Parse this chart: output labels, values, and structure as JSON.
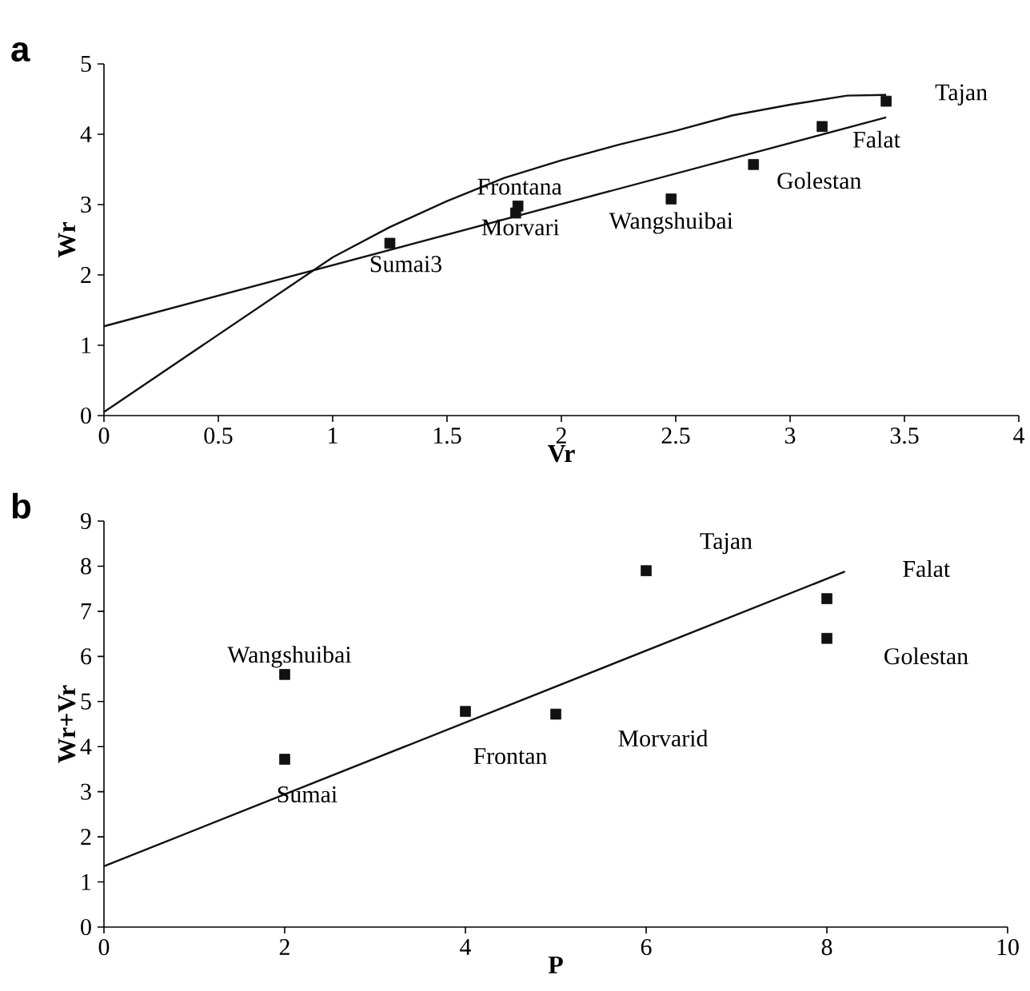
{
  "chart_data": [
    {
      "type": "scatter",
      "title": "a",
      "xlabel": "Vr",
      "ylabel": "Wr",
      "xlim": [
        0,
        4
      ],
      "ylim": [
        0,
        5
      ],
      "xticks": [
        0,
        0.5,
        1,
        1.5,
        2,
        2.5,
        3,
        3.5,
        4
      ],
      "yticks": [
        0,
        1,
        2,
        3,
        4,
        5
      ],
      "grid": false,
      "series": [
        {
          "color": "#111111",
          "marker": "square",
          "x": [
            1.25,
            1.81,
            1.8,
            2.48,
            2.84,
            3.14,
            3.42
          ],
          "values": [
            2.45,
            2.98,
            2.88,
            3.08,
            3.57,
            4.11,
            4.47
          ]
        },
        {
          "type": "line",
          "marker": "none",
          "color": "#111111",
          "x": [
            0,
            3.42
          ],
          "values": [
            1.27,
            4.24
          ]
        },
        {
          "type": "line",
          "marker": "none",
          "color": "#111111",
          "x": [
            0,
            0.25,
            0.5,
            0.75,
            1,
            1.25,
            1.5,
            1.75,
            2,
            2.25,
            2.5,
            2.75,
            3,
            3.25,
            3.42
          ],
          "values": [
            0.05,
            0.6,
            1.15,
            1.7,
            2.25,
            2.68,
            3.05,
            3.38,
            3.63,
            3.85,
            4.05,
            4.27,
            4.42,
            4.55,
            4.56
          ]
        }
      ],
      "annotations": [
        {
          "text": "Tajan",
          "x": 3.42,
          "y": 4.47
        },
        {
          "text": "Falat",
          "x": 3.14,
          "y": 4.11
        },
        {
          "text": "Golestan",
          "x": 2.84,
          "y": 3.57
        },
        {
          "text": "Wangshuibai",
          "x": 2.48,
          "y": 3.08
        },
        {
          "text": "Frontana",
          "x": 1.81,
          "y": 2.98
        },
        {
          "text": "Morvari",
          "x": 1.8,
          "y": 2.88
        },
        {
          "text": "Sumai3",
          "x": 1.25,
          "y": 2.45
        }
      ]
    },
    {
      "type": "scatter",
      "title": "b",
      "xlabel": "P",
      "ylabel": "Wr+Vr",
      "xlim": [
        0,
        10
      ],
      "ylim": [
        0,
        9
      ],
      "xticks": [
        0,
        2,
        4,
        6,
        8,
        10
      ],
      "yticks": [
        0,
        1,
        2,
        3,
        4,
        5,
        6,
        7,
        8,
        9
      ],
      "grid": false,
      "series": [
        {
          "color": "#111111",
          "marker": "square",
          "x": [
            2,
            2,
            4,
            5,
            6,
            8,
            8
          ],
          "values": [
            5.6,
            3.72,
            4.78,
            4.72,
            7.9,
            7.28,
            6.4
          ]
        },
        {
          "type": "line",
          "marker": "none",
          "color": "#111111",
          "x": [
            0,
            8.2
          ],
          "values": [
            1.35,
            7.88
          ]
        }
      ],
      "annotations": [
        {
          "text": "Tajan",
          "x": 6,
          "y": 7.9
        },
        "Falat",
        {
          "text": "Golestan",
          "x": 8,
          "y": 6.4
        },
        {
          "text": "Wangshuibai",
          "x": 2,
          "y": 5.6
        },
        {
          "text": "Sumai",
          "x": 2,
          "y": 3.72
        },
        {
          "text": "Frontan",
          "x": 4,
          "y": 4.78
        },
        {
          "text": "Morvarid",
          "x": 5,
          "y": 4.72
        }
      ]
    }
  ]
}
